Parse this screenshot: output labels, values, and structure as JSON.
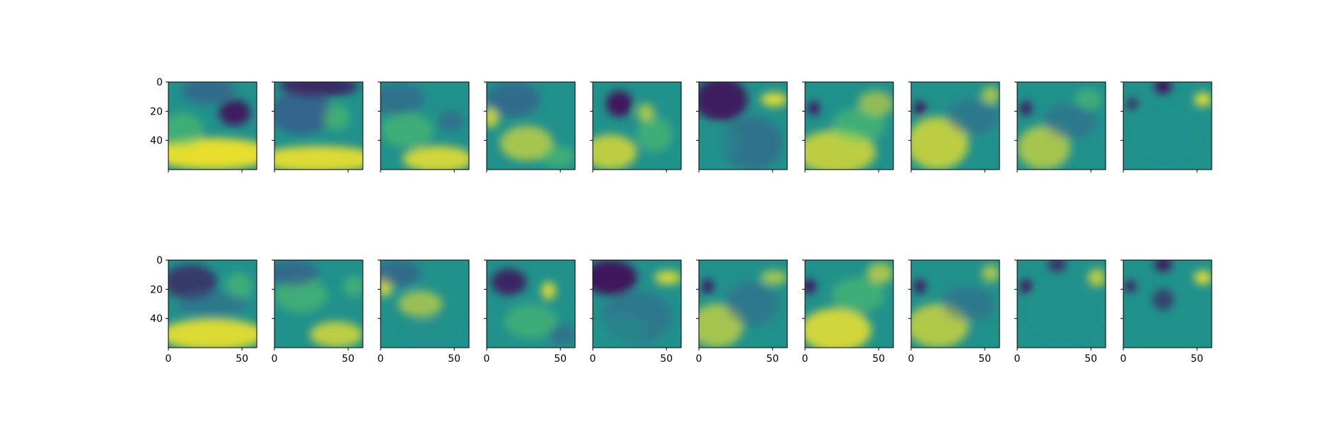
{
  "chart_data": {
    "type": "heatmap",
    "layout": {
      "rows": 2,
      "columns": 10,
      "sharex": true,
      "sharey": true
    },
    "image_size": {
      "rows": 60,
      "cols": 60
    },
    "colormap": "viridis",
    "colormap_stops": [
      "#440154",
      "#3b528b",
      "#21918c",
      "#5ec962",
      "#fde725"
    ],
    "xlim": [
      0,
      60
    ],
    "ylim": [
      60,
      0
    ],
    "x_ticks": [
      0,
      50
    ],
    "y_ticks": [
      0,
      20,
      40
    ],
    "x_tick_labels": [
      "0",
      "50"
    ],
    "y_tick_labels": [
      "0",
      "20",
      "40"
    ],
    "tick_labels_shown": "y on first column, x on bottom row",
    "title": "",
    "xlabel": "",
    "ylabel": "",
    "panels": [
      {
        "row": 0,
        "col": 0,
        "pattern": "bright band along bottom, dark patch upper right"
      },
      {
        "row": 0,
        "col": 1,
        "pattern": "dark upper region, bright band along bottom"
      },
      {
        "row": 0,
        "col": 2,
        "pattern": "mixed green, bright lower right band"
      },
      {
        "row": 0,
        "col": 3,
        "pattern": "bright swirl lower middle, bright spot left edge"
      },
      {
        "row": 0,
        "col": 4,
        "pattern": "dark spot upper left, bright lower left"
      },
      {
        "row": 0,
        "col": 5,
        "pattern": "dark upper left, bright streak upper right"
      },
      {
        "row": 0,
        "col": 6,
        "pattern": "small dark spot upper left, bright lower half"
      },
      {
        "row": 0,
        "col": 7,
        "pattern": "dark spot upper left, bright lower left"
      },
      {
        "row": 0,
        "col": 8,
        "pattern": "dark spot upper left, moderately bright lower left"
      },
      {
        "row": 0,
        "col": 9,
        "pattern": "mostly teal, dark top middle, bright spot upper right"
      },
      {
        "row": 1,
        "col": 0,
        "pattern": "dark upper left, bright band along bottom"
      },
      {
        "row": 1,
        "col": 1,
        "pattern": "mixed green, bright lower right"
      },
      {
        "row": 1,
        "col": 2,
        "pattern": "mixed green, bright spots middle"
      },
      {
        "row": 1,
        "col": 3,
        "pattern": "dark patch upper left, bright spot right middle"
      },
      {
        "row": 1,
        "col": 4,
        "pattern": "dark upper left, bright streak upper right"
      },
      {
        "row": 1,
        "col": 5,
        "pattern": "dark spot upper left, bright lower left"
      },
      {
        "row": 1,
        "col": 6,
        "pattern": "dark spot upper left, bright lower half"
      },
      {
        "row": 1,
        "col": 7,
        "pattern": "dark spot upper left, bright lower left"
      },
      {
        "row": 1,
        "col": 8,
        "pattern": "mostly teal, dark spot upper left, bright spot upper right"
      },
      {
        "row": 1,
        "col": 9,
        "pattern": "mostly teal, dark spot upper left, dark middle"
      }
    ]
  }
}
